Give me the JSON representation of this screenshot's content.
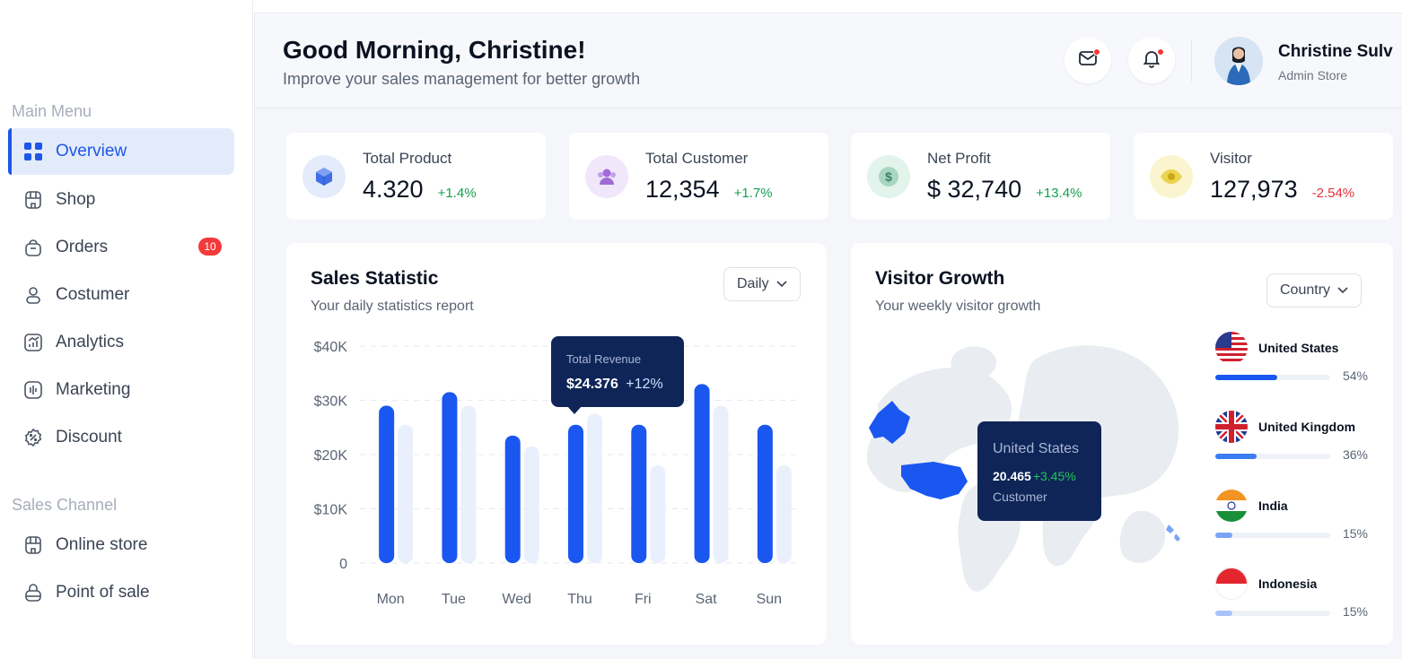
{
  "sidebar": {
    "main_menu_label": "Main Menu",
    "items": [
      {
        "label": "Overview",
        "icon": "grid-icon",
        "active": true
      },
      {
        "label": "Shop",
        "icon": "shop-icon"
      },
      {
        "label": "Orders",
        "icon": "bag-icon",
        "badge": "10"
      },
      {
        "label": "Costumer",
        "icon": "user-icon"
      },
      {
        "label": "Analytics",
        "icon": "analytics-icon"
      },
      {
        "label": "Marketing",
        "icon": "marketing-icon"
      },
      {
        "label": "Discount",
        "icon": "discount-icon"
      }
    ],
    "sales_channel_label": "Sales Channel",
    "channels": [
      {
        "label": "Online store",
        "icon": "store-icon"
      },
      {
        "label": "Point of sale",
        "icon": "pos-icon"
      }
    ]
  },
  "header": {
    "greeting": "Good Morning, Christine!",
    "subtitle": "Improve your sales management for better growth",
    "user_name": "Christine Sulv",
    "user_role": "Admin Store"
  },
  "stats": [
    {
      "label": "Total Product",
      "value": "4.320",
      "change": "+1.4%",
      "trend": "up",
      "icon": "cube-icon",
      "color": "#3f6fe8"
    },
    {
      "label": "Total Customer",
      "value": "12,354",
      "change": "+1.7%",
      "trend": "up",
      "icon": "users-icon",
      "color": "#a06bd8"
    },
    {
      "label": "Net Profit",
      "value": "$ 32,740",
      "change": "+13.4%",
      "trend": "up",
      "icon": "dollar-icon",
      "color": "#4f9a7e"
    },
    {
      "label": "Visitor",
      "value": "127,973",
      "change": "-2.54%",
      "trend": "down",
      "icon": "eye-icon",
      "color": "#e3c436"
    }
  ],
  "sales": {
    "title": "Sales Statistic",
    "subtitle": "Your daily statistics report",
    "filter": "Daily",
    "tooltip": {
      "label": "Total Revenue",
      "value": "$24.376",
      "change": "+12%"
    }
  },
  "chart_data": {
    "type": "bar",
    "categories": [
      "Mon",
      "Tue",
      "Wed",
      "Thu",
      "Fri",
      "Sat",
      "Sun"
    ],
    "series": [
      {
        "values": [
          29000,
          31500,
          23500,
          25500,
          25500,
          33000,
          25500
        ],
        "color": "#1a56f0"
      },
      {
        "values": [
          25500,
          29000,
          21500,
          27500,
          18000,
          29000,
          18000
        ],
        "color": "#eaf0fb"
      }
    ],
    "y_ticks": [
      "0",
      "$10K",
      "$20K",
      "$30K",
      "$40K"
    ],
    "ylim": [
      0,
      40000
    ],
    "grid": true
  },
  "visitor": {
    "title": "Visitor Growth",
    "subtitle": "Your weekly visitor growth",
    "filter": "Country",
    "tooltip": {
      "country": "United States",
      "value": "20.465",
      "change": "+3.45%",
      "label": "Customer"
    },
    "countries": [
      {
        "name": "United States",
        "percent": "54%",
        "fraction": 0.54,
        "color": "#1a56f0"
      },
      {
        "name": "United Kingdom",
        "percent": "36%",
        "fraction": 0.36,
        "color": "#3b7cf2"
      },
      {
        "name": "India",
        "percent": "15%",
        "fraction": 0.15,
        "color": "#7aa4f6"
      },
      {
        "name": "Indonesia",
        "percent": "15%",
        "fraction": 0.15,
        "color": "#a9c3f8"
      }
    ]
  }
}
